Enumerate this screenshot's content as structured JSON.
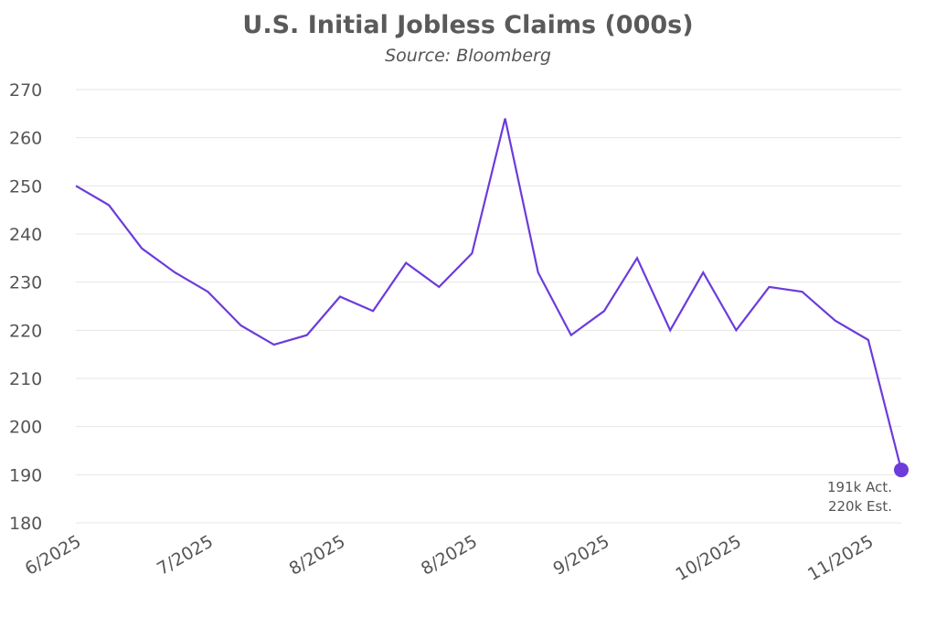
{
  "chart_data": {
    "type": "line",
    "title": "U.S. Initial Jobless Claims (000s)",
    "subtitle": "Source: Bloomberg",
    "ylim": [
      180,
      270
    ],
    "yticks": [
      180,
      190,
      200,
      210,
      220,
      230,
      240,
      250,
      260,
      270
    ],
    "grid": true,
    "x_tick_labels": [
      "6/2025",
      "7/2025",
      "8/2025",
      "8/2025",
      "9/2025",
      "10/2025",
      "11/2025"
    ],
    "x_tick_indices": [
      0,
      4,
      8,
      12,
      16,
      20,
      24
    ],
    "series": [
      {
        "color": "#6c3bdb",
        "values": [
          250,
          246,
          237,
          232,
          228,
          221,
          217,
          219,
          227,
          224,
          234,
          229,
          236,
          264,
          232,
          219,
          224,
          235,
          220,
          232,
          220,
          229,
          228,
          222,
          218,
          191
        ]
      }
    ],
    "annotation": {
      "line1": "191k Act.",
      "line2": "220k Est."
    }
  }
}
